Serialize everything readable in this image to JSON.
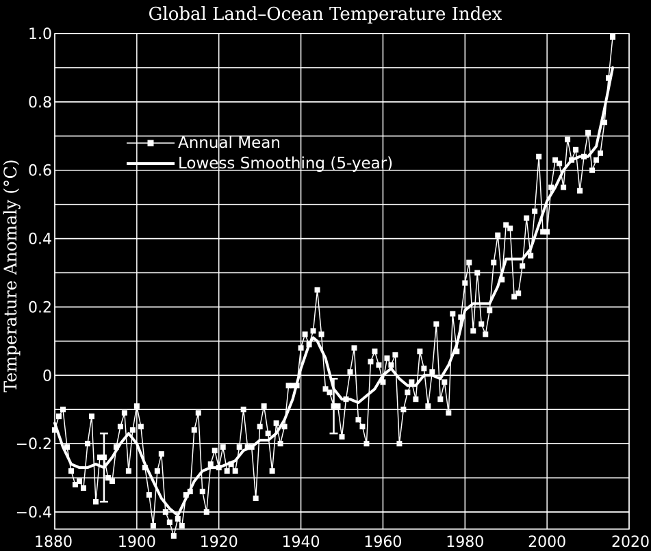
{
  "chart_data": {
    "type": "line",
    "title": "Global Land–Ocean Temperature Index",
    "ylabel": "Temperature Anomaly (°C)",
    "xlabel": "",
    "xlim": [
      1880,
      2020
    ],
    "ylim": [
      -0.45,
      1.0
    ],
    "grid": true,
    "legend_position": "upper-left",
    "x_ticks": [
      1880,
      1900,
      1920,
      1940,
      1960,
      1980,
      2000,
      2020
    ],
    "x_tick_labels": [
      "1880",
      "1900",
      "1920",
      "1940",
      "1960",
      "1980",
      "2000",
      "2020"
    ],
    "y_ticks": [
      -0.4,
      -0.2,
      0,
      0.2,
      0.4,
      0.6,
      0.8,
      1.0
    ],
    "y_tick_labels": [
      "−0.4",
      "−0.2",
      "0",
      "0.2",
      "0.4",
      "0.6",
      "0.8",
      "1.0"
    ],
    "error_bars": [
      {
        "x": 1892,
        "low": -0.37,
        "high": -0.17
      },
      {
        "x": 1948,
        "low": -0.17,
        "high": -0.01
      }
    ],
    "series": [
      {
        "name": "Annual Mean",
        "style": "line-square-markers",
        "x": [
          1880,
          1881,
          1882,
          1883,
          1884,
          1885,
          1886,
          1887,
          1888,
          1889,
          1890,
          1891,
          1892,
          1893,
          1894,
          1895,
          1896,
          1897,
          1898,
          1899,
          1900,
          1901,
          1902,
          1903,
          1904,
          1905,
          1906,
          1907,
          1908,
          1909,
          1910,
          1911,
          1912,
          1913,
          1914,
          1915,
          1916,
          1917,
          1918,
          1919,
          1920,
          1921,
          1922,
          1923,
          1924,
          1925,
          1926,
          1927,
          1928,
          1929,
          1930,
          1931,
          1932,
          1933,
          1934,
          1935,
          1936,
          1937,
          1938,
          1939,
          1940,
          1941,
          1942,
          1943,
          1944,
          1945,
          1946,
          1947,
          1948,
          1949,
          1950,
          1951,
          1952,
          1953,
          1954,
          1955,
          1956,
          1957,
          1958,
          1959,
          1960,
          1961,
          1962,
          1963,
          1964,
          1965,
          1966,
          1967,
          1968,
          1969,
          1970,
          1971,
          1972,
          1973,
          1974,
          1975,
          1976,
          1977,
          1978,
          1979,
          1980,
          1981,
          1982,
          1983,
          1984,
          1985,
          1986,
          1987,
          1988,
          1989,
          1990,
          1991,
          1992,
          1993,
          1994,
          1995,
          1996,
          1997,
          1998,
          1999,
          2000,
          2001,
          2002,
          2003,
          2004,
          2005,
          2006,
          2007,
          2008,
          2009,
          2010,
          2011,
          2012,
          2013,
          2014,
          2015,
          2016
        ],
        "values": [
          -0.16,
          -0.12,
          -0.1,
          -0.21,
          -0.28,
          -0.32,
          -0.31,
          -0.33,
          -0.2,
          -0.12,
          -0.37,
          -0.24,
          -0.24,
          -0.3,
          -0.31,
          -0.21,
          -0.15,
          -0.11,
          -0.28,
          -0.16,
          -0.09,
          -0.15,
          -0.27,
          -0.35,
          -0.44,
          -0.28,
          -0.23,
          -0.4,
          -0.43,
          -0.47,
          -0.42,
          -0.44,
          -0.35,
          -0.34,
          -0.16,
          -0.11,
          -0.34,
          -0.4,
          -0.26,
          -0.22,
          -0.27,
          -0.21,
          -0.28,
          -0.26,
          -0.28,
          -0.21,
          -0.1,
          -0.21,
          -0.21,
          -0.36,
          -0.15,
          -0.09,
          -0.17,
          -0.28,
          -0.14,
          -0.2,
          -0.15,
          -0.03,
          -0.03,
          -0.03,
          0.08,
          0.12,
          0.09,
          0.13,
          0.25,
          0.12,
          -0.04,
          -0.05,
          -0.09,
          -0.09,
          -0.18,
          -0.07,
          0.01,
          0.08,
          -0.13,
          -0.15,
          -0.2,
          0.04,
          0.07,
          0.03,
          -0.02,
          0.05,
          0.03,
          0.06,
          -0.2,
          -0.1,
          -0.05,
          -0.02,
          -0.07,
          0.07,
          0.02,
          -0.09,
          0.01,
          0.15,
          -0.07,
          -0.02,
          -0.11,
          0.18,
          0.07,
          0.17,
          0.27,
          0.33,
          0.13,
          0.3,
          0.15,
          0.12,
          0.19,
          0.33,
          0.41,
          0.28,
          0.44,
          0.43,
          0.23,
          0.24,
          0.32,
          0.46,
          0.35,
          0.48,
          0.64,
          0.42,
          0.42,
          0.55,
          0.63,
          0.62,
          0.55,
          0.69,
          0.63,
          0.66,
          0.54,
          0.64,
          0.71,
          0.6,
          0.63,
          0.65,
          0.74,
          0.87,
          0.99
        ]
      },
      {
        "name": "Lowess Smoothing (5-year)",
        "style": "thick-line",
        "x": [
          1880,
          1882,
          1884,
          1886,
          1888,
          1890,
          1892,
          1894,
          1896,
          1898,
          1900,
          1902,
          1904,
          1906,
          1908,
          1910,
          1912,
          1914,
          1916,
          1918,
          1920,
          1922,
          1924,
          1926,
          1928,
          1930,
          1932,
          1934,
          1936,
          1938,
          1940,
          1942,
          1943,
          1944,
          1946,
          1948,
          1950,
          1952,
          1954,
          1956,
          1958,
          1960,
          1962,
          1964,
          1966,
          1968,
          1970,
          1972,
          1974,
          1976,
          1978,
          1980,
          1982,
          1984,
          1986,
          1988,
          1990,
          1992,
          1994,
          1996,
          1998,
          2000,
          2002,
          2004,
          2006,
          2008,
          2010,
          2012,
          2014,
          2016
        ],
        "values": [
          -0.14,
          -0.21,
          -0.26,
          -0.27,
          -0.27,
          -0.26,
          -0.27,
          -0.24,
          -0.2,
          -0.17,
          -0.2,
          -0.26,
          -0.31,
          -0.36,
          -0.39,
          -0.41,
          -0.36,
          -0.31,
          -0.28,
          -0.27,
          -0.27,
          -0.26,
          -0.25,
          -0.22,
          -0.21,
          -0.19,
          -0.19,
          -0.17,
          -0.13,
          -0.07,
          0.02,
          0.09,
          0.11,
          0.1,
          0.05,
          -0.04,
          -0.07,
          -0.07,
          -0.08,
          -0.06,
          -0.04,
          0.0,
          0.02,
          -0.01,
          -0.03,
          -0.03,
          0.0,
          0.0,
          -0.01,
          0.03,
          0.09,
          0.19,
          0.21,
          0.21,
          0.21,
          0.26,
          0.34,
          0.34,
          0.34,
          0.37,
          0.44,
          0.51,
          0.55,
          0.6,
          0.63,
          0.64,
          0.64,
          0.67,
          0.78,
          0.9
        ]
      }
    ]
  }
}
